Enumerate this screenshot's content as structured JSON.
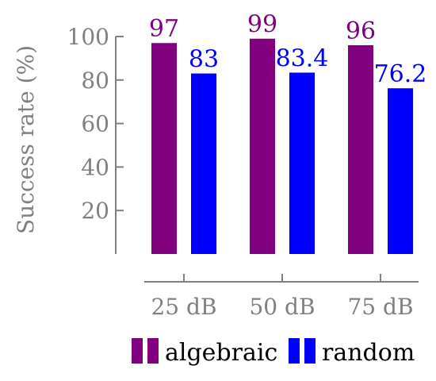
{
  "chart_data": {
    "type": "bar",
    "title": "",
    "xlabel": "",
    "ylabel": "Success rate (%)",
    "ylim": [
      0,
      100
    ],
    "yticks": [
      20,
      40,
      60,
      80,
      100
    ],
    "categories": [
      "25 dB",
      "50 dB",
      "75 dB"
    ],
    "series": [
      {
        "name": "algebraic",
        "color": "#800080",
        "values": [
          97,
          99,
          96
        ],
        "labels": [
          "97",
          "99",
          "96"
        ]
      },
      {
        "name": "random",
        "color": "#0000ff",
        "values": [
          83,
          83.4,
          76.2
        ],
        "labels": [
          "83",
          "83.4",
          "76.2"
        ]
      }
    ],
    "grid": false,
    "legend": "bottom",
    "axis_color": "#808080"
  }
}
